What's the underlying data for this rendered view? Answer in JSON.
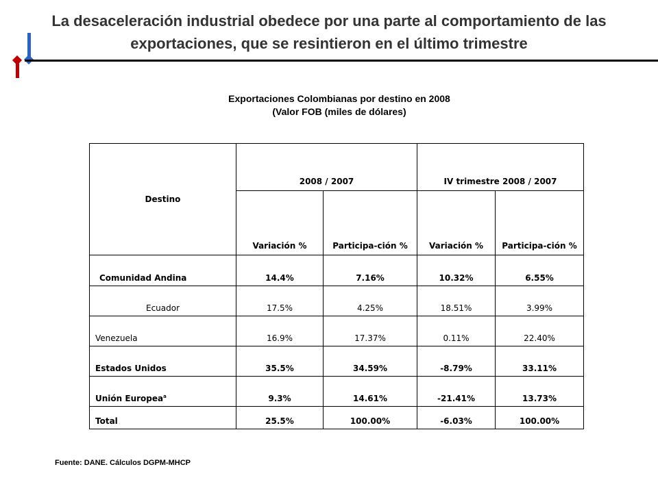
{
  "slide": {
    "title_line1": "La desaceleración industrial obedece por una parte al comportamiento de las",
    "title_line2": "exportaciones, que se resintieron en el último trimestre",
    "accent_colors": {
      "red": "#c00000",
      "blue": "#2a62c9"
    },
    "deco_icon": "red-blue-pin-logo"
  },
  "chart_title": {
    "line1": "Exportaciones Colombianas  por destino en 2008",
    "line2": "(Valor FOB (miles  de dólares)"
  },
  "table": {
    "dest_header": "Destino",
    "group1": "2008 / 2007",
    "group2": "IV trimestre 2008 / 2007",
    "sub_var1": "Variación %",
    "sub_part1": "Participa-ción %",
    "sub_var2": "Variación %",
    "sub_part2": "Participa-ción %",
    "rows": [
      {
        "destino": "Comunidad Andina",
        "var_year": "14.4%",
        "part_year": "7.16%",
        "var_q4": "10.32%",
        "part_q4": "6.55%"
      },
      {
        "destino": "Ecuador",
        "var_year": "17.5%",
        "part_year": "4.25%",
        "var_q4": "18.51%",
        "part_q4": "3.99%"
      },
      {
        "destino": "Venezuela",
        "var_year": "16.9%",
        "part_year": "17.37%",
        "var_q4": "0.11%",
        "part_q4": "22.40%"
      },
      {
        "destino": "Estados Unidos",
        "var_year": "35.5%",
        "part_year": "34.59%",
        "var_q4": "-8.79%",
        "part_q4": "33.11%"
      },
      {
        "destino": "Unión Europea",
        "footnote": "a",
        "var_year": "9.3%",
        "part_year": "14.61%",
        "var_q4": "-21.41%",
        "part_q4": "13.73%"
      },
      {
        "destino": "Total",
        "var_year": "25.5%",
        "part_year": "100.00%",
        "var_q4": "-6.03%",
        "part_q4": "100.00%"
      }
    ]
  },
  "source": "Fuente: DANE. Cálculos DGPM-MHCP"
}
